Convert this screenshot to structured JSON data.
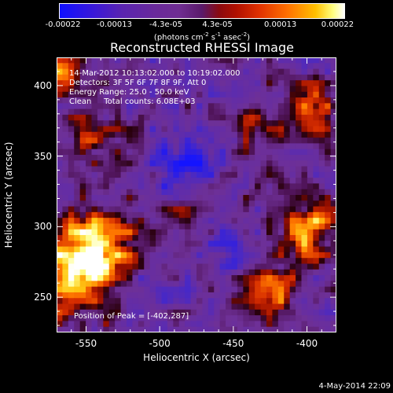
{
  "colorbar": {
    "ticks": [
      "-0.00022",
      "-0.00013",
      "-4.3e-05",
      "4.3e-05",
      "0.00013",
      "0.00022"
    ],
    "unit_base": "(photons cm",
    "unit_exp1": "-2",
    "unit_mid": " s",
    "unit_exp2": "-1",
    "unit_mid2": " asec",
    "unit_exp3": "-2",
    "unit_end": ")"
  },
  "chart_data": {
    "type": "heatmap",
    "title": "Reconstructed RHESSI Image",
    "xlabel": "Heliocentric X (arcsec)",
    "ylabel": "Heliocentric Y (arcsec)",
    "xlim": [
      -570,
      -380
    ],
    "ylim": [
      225,
      420
    ],
    "xticks": [
      -550,
      -500,
      -450,
      -400
    ],
    "yticks": [
      250,
      300,
      350,
      400
    ],
    "colorbar_range": [
      -0.00022,
      0.00022
    ],
    "peak_position": [
      -402,
      287
    ],
    "annotations": {
      "time_range": "14-Mar-2012 10:13:02.000 to 10:19:02.000",
      "detectors": "Detectors: 3F 5F 6F 7F 8F 9F, Att 0",
      "energy": "Energy Range: 25.0 - 50.0 keV",
      "clean": "Clean     Total counts: 6.08E+03",
      "peak": "Position of Peak = [-402,287]"
    }
  },
  "footer": "4-May-2014 22:09"
}
